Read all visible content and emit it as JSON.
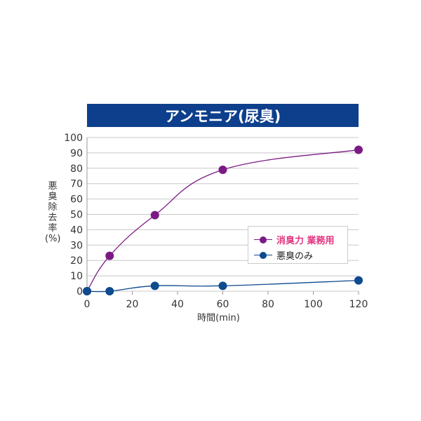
{
  "chart_data": {
    "type": "line",
    "title": "アンモニア(尿臭)",
    "xlabel": "時間(min)",
    "ylabel": "悪臭除去率(%)",
    "xlim": [
      0,
      120
    ],
    "ylim": [
      0,
      100
    ],
    "xticks": [
      0,
      20,
      40,
      60,
      80,
      100,
      120
    ],
    "yticks": [
      0,
      10,
      20,
      30,
      40,
      50,
      60,
      70,
      80,
      90,
      100
    ],
    "grid": "horizontal",
    "legend_position": "right-middle",
    "series": [
      {
        "name": "消臭力 業務用",
        "color": "#7b1a84",
        "label_color": "#e0357f",
        "x": [
          0,
          10,
          30,
          60,
          120
        ],
        "y": [
          0,
          23,
          49.5,
          79,
          92
        ]
      },
      {
        "name": "悪臭のみ",
        "color": "#0d4a8f",
        "label_color": "#222222",
        "x": [
          0,
          10,
          30,
          60,
          120
        ],
        "y": [
          0,
          0,
          3.5,
          3.5,
          7
        ]
      }
    ]
  },
  "colors": {
    "title_bar": "#0d3f8c"
  }
}
